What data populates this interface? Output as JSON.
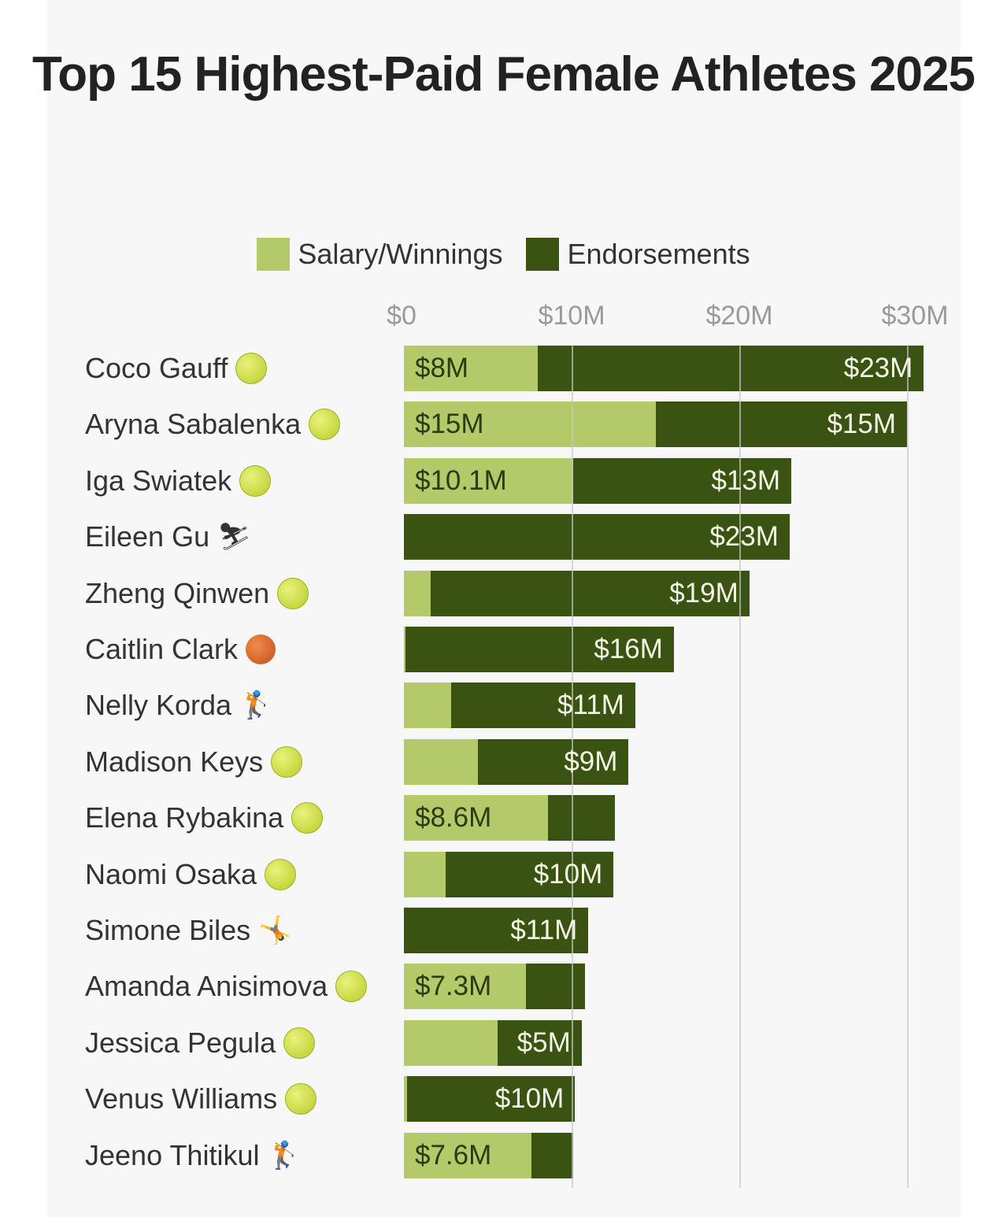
{
  "chart_data": {
    "type": "bar",
    "orientation": "horizontal",
    "stacked": true,
    "title": "Top 15 Highest-Paid Female Athletes 2025",
    "xlabel": "",
    "ylabel": "",
    "xlim": [
      0,
      31
    ],
    "xticks": [
      "$0",
      "$10M",
      "$20M",
      "$30M"
    ],
    "xtick_values": [
      0,
      10,
      20,
      30
    ],
    "grid": true,
    "legend_position": "top",
    "colors": {
      "Salary/Winnings": "#b3c96a",
      "Endorsements": "#3a5212"
    },
    "categories": [
      "Coco Gauff",
      "Aryna Sabalenka",
      "Iga Swiatek",
      "Eileen Gu",
      "Zheng Qinwen",
      "Caitlin Clark",
      "Nelly Korda",
      "Madison Keys",
      "Elena Rybakina",
      "Naomi Osaka",
      "Simone Biles",
      "Amanda Anisimova",
      "Jessica Pegula",
      "Venus Williams",
      "Jeeno Thitikul"
    ],
    "sport_icons": [
      "tennis-ball",
      "tennis-ball",
      "tennis-ball",
      "skier",
      "tennis-ball",
      "basketball",
      "golfer",
      "tennis-ball",
      "tennis-ball",
      "tennis-ball",
      "gymnast",
      "tennis-ball",
      "tennis-ball",
      "tennis-ball",
      "golfer"
    ],
    "series": [
      {
        "name": "Salary/Winnings",
        "values": [
          8,
          15,
          10.1,
          0,
          1.6,
          0.1,
          2.8,
          4.4,
          8.6,
          2.5,
          0,
          7.3,
          5.6,
          0.2,
          7.6
        ],
        "labels": [
          "$8M",
          "$15M",
          "$10.1M",
          null,
          null,
          null,
          null,
          null,
          "$8.6M",
          null,
          null,
          "$7.3M",
          null,
          null,
          "$7.6M"
        ]
      },
      {
        "name": "Endorsements",
        "values": [
          23,
          15,
          13,
          23,
          19,
          16,
          11,
          9,
          4,
          10,
          11,
          3.5,
          5,
          10,
          2.5
        ],
        "labels": [
          "$23M",
          "$15M",
          "$13M",
          "$23M",
          "$19M",
          "$16M",
          "$11M",
          "$9M",
          null,
          "$10M",
          "$11M",
          null,
          "$5M",
          "$10M",
          null
        ]
      }
    ]
  }
}
